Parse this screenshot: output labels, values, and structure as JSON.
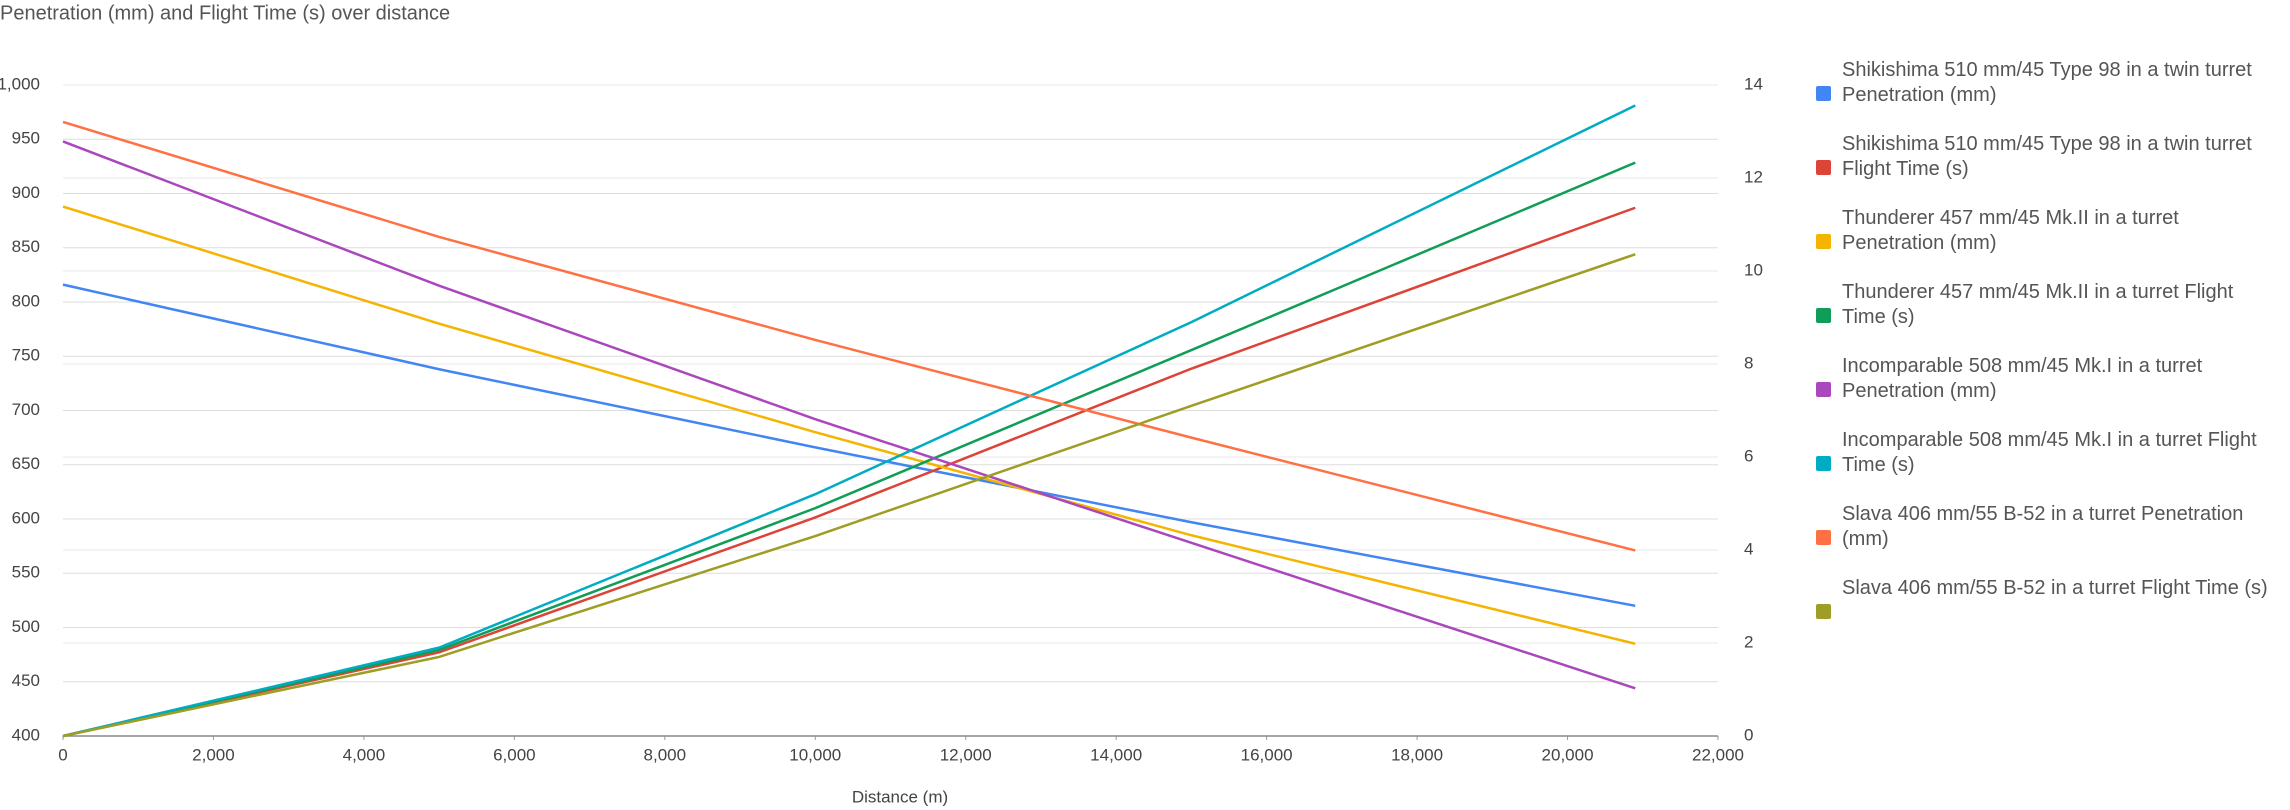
{
  "chart_data": {
    "type": "line",
    "title": "Penetration (mm) and Flight Time (s) over distance",
    "x_label": "Distance (m)",
    "x": [
      0,
      5000,
      10000,
      15000,
      20900
    ],
    "xlim": [
      0,
      22000
    ],
    "xticks": [
      0,
      {
        "value": 2000,
        "label": "2,000"
      },
      {
        "value": 4000,
        "label": "4,000"
      },
      {
        "value": 6000,
        "label": "6,000"
      },
      {
        "value": 8000,
        "label": "8,000"
      },
      {
        "value": 10000,
        "label": "10,000"
      },
      {
        "value": 12000,
        "label": "12,000"
      },
      {
        "value": 14000,
        "label": "14,000"
      },
      {
        "value": 16000,
        "label": "16,000"
      },
      {
        "value": 18000,
        "label": "18,000"
      },
      {
        "value": 20000,
        "label": "20,000"
      },
      {
        "value": 22000,
        "label": "22,000"
      }
    ],
    "ylim": [
      400,
      1000
    ],
    "yticks": [
      400,
      450,
      500,
      550,
      600,
      650,
      700,
      750,
      800,
      850,
      900,
      950,
      {
        "value": 1000,
        "label": "1,000"
      }
    ],
    "y2lim": [
      0,
      14
    ],
    "y2ticks": [
      0,
      2,
      4,
      6,
      8,
      10,
      12,
      14
    ],
    "grid": true,
    "legend": "right",
    "series": [
      {
        "name": "Shikishima 510 mm/45 Type 98 in a twin turret Penetration (mm)",
        "color": "#4285f4",
        "values": [
          816,
          738,
          666,
          597,
          520
        ]
      },
      {
        "name": "Shikishima 510 mm/45 Type 98 in a twin turret Flight Time (s)",
        "color": "#db4437",
        "axis": "y2",
        "values": [
          0,
          1.8,
          4.7,
          7.9,
          11.36
        ]
      },
      {
        "name": "Thunderer 457 mm/45 Mk.II in a turret Penetration (mm)",
        "color": "#f4b400",
        "values": [
          888,
          780,
          680,
          585,
          485
        ]
      },
      {
        "name": "Thunderer 457 mm/45 Mk.II in a turret Flight Time (s)",
        "color": "#0f9d58",
        "axis": "y2",
        "values": [
          0,
          1.85,
          4.9,
          8.3,
          12.33
        ]
      },
      {
        "name": "Incomparable 508 mm/45 Mk.I in a turret Penetration (mm)",
        "color": "#ab47bc",
        "values": [
          948,
          815,
          692,
          578,
          444
        ]
      },
      {
        "name": "Incomparable 508 mm/45 Mk.I in a turret Flight Time (s)",
        "color": "#00acc1",
        "axis": "y2",
        "values": [
          0,
          1.9,
          5.2,
          8.9,
          13.56
        ]
      },
      {
        "name": "Slava 406 mm/55 B-52 in a turret Penetration (mm)",
        "color": "#ff7043",
        "values": [
          966,
          860,
          765,
          675,
          571
        ]
      },
      {
        "name": "Slava 406 mm/55 B-52 in a turret Flight Time (s)",
        "color": "#9e9d24",
        "axis": "y2",
        "values": [
          0,
          1.7,
          4.3,
          7.1,
          10.36
        ]
      }
    ]
  }
}
